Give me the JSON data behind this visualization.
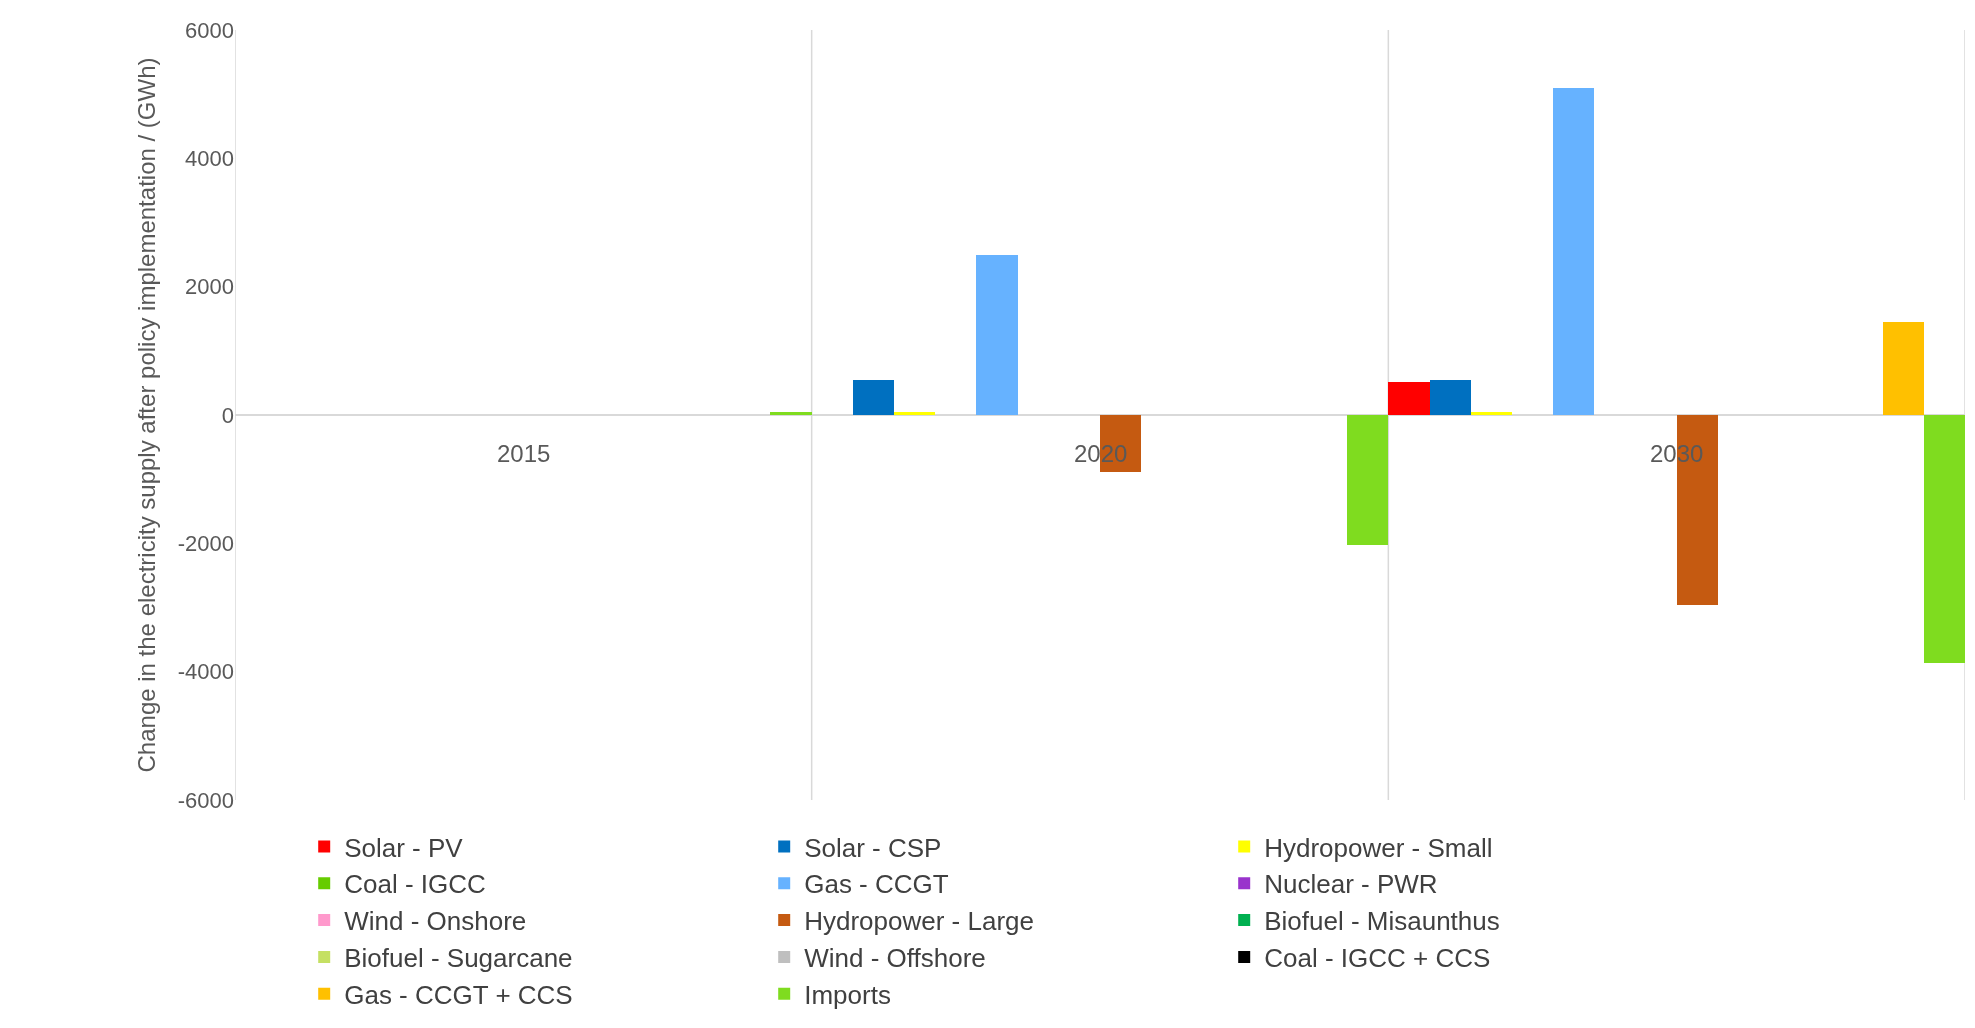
{
  "chart_data": {
    "type": "bar",
    "ylabel": "Change in the electricity supply after policy implementation / (GWh)",
    "categories": [
      "2015",
      "2020",
      "2030"
    ],
    "ylim": [
      -6000,
      6000
    ],
    "yticks": [
      -6000,
      -4000,
      -2000,
      0,
      2000,
      4000,
      6000
    ],
    "grid": "x",
    "legend": "bottom",
    "series": [
      {
        "name": "Solar - PV",
        "color": "#ff0000",
        "values": [
          0,
          0,
          510
        ]
      },
      {
        "name": "Solar - CSP",
        "color": "#0070c0",
        "values": [
          0,
          540,
          550
        ]
      },
      {
        "name": "Hydropower - Small",
        "color": "#ffff00",
        "values": [
          0,
          40,
          40
        ]
      },
      {
        "name": "Coal - IGCC",
        "color": "#66cc00",
        "values": [
          0,
          0,
          0
        ]
      },
      {
        "name": "Gas - CCGT",
        "color": "#66b2ff",
        "values": [
          0,
          2490,
          5100
        ]
      },
      {
        "name": "Nuclear - PWR",
        "color": "#9933cc",
        "values": [
          0,
          0,
          0
        ]
      },
      {
        "name": "Wind - Onshore",
        "color": "#ff99cc",
        "values": [
          0,
          0,
          0
        ]
      },
      {
        "name": "Hydropower - Large",
        "color": "#c55a11",
        "values": [
          0,
          -890,
          -2960
        ]
      },
      {
        "name": "Biofuel - Misaunthus",
        "color": "#00b050",
        "values": [
          0,
          0,
          0
        ]
      },
      {
        "name": "Biofuel - Sugarcane",
        "color": "#c5e063",
        "values": [
          0,
          0,
          0
        ]
      },
      {
        "name": "Wind - Offshore",
        "color": "#bfbfbf",
        "values": [
          0,
          null,
          null
        ]
      },
      {
        "name": "Coal - IGCC + CCS",
        "color": "#000000",
        "values": [
          0,
          0,
          0
        ]
      },
      {
        "name": "Gas - CCGT + CCS",
        "color": "#ffc000",
        "values": [
          0,
          0,
          1450
        ]
      },
      {
        "name": "Imports",
        "color": "#7fdc1f",
        "values": [
          50,
          -2020,
          -3870
        ]
      }
    ]
  }
}
